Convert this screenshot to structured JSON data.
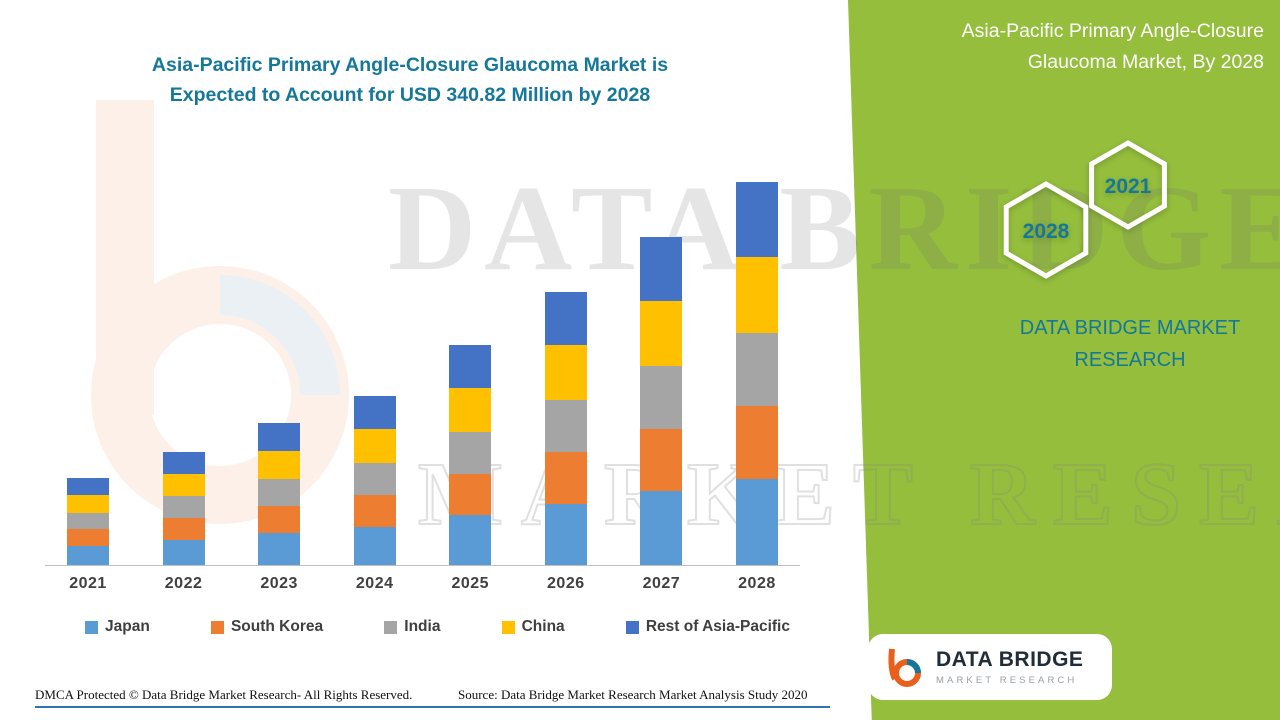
{
  "colors": {
    "teal": "#15789B",
    "green": "#94BE3C",
    "footer_line": "#2E74B5"
  },
  "header": {
    "main_title_line1": "Asia-Pacific Primary Angle-Closure Glaucoma Market is",
    "main_title_line2": "Expected to Account for USD 340.82 Million by 2028",
    "panel_title_line1": "Asia-Pacific Primary Angle-Closure",
    "panel_title_line2": "Glaucoma Market, By 2028"
  },
  "side_panel": {
    "hexagon_top_label": "2021",
    "hexagon_bottom_label": "2028",
    "brand_line1": "DATA BRIDGE MARKET",
    "brand_line2": "RESEARCH"
  },
  "watermark": {
    "line1": "DATA BRIDGE",
    "line2": "MARKET RESEARCH"
  },
  "logo_card": {
    "brand": "DATA BRIDGE",
    "sub": "MARKET RESEARCH"
  },
  "footer": {
    "left": "DMCA Protected © Data Bridge Market Research- All Rights Reserved.",
    "source": "Source: Data Bridge Market Research Market Analysis Study 2020"
  },
  "chart_data": {
    "type": "bar",
    "stacked": true,
    "unit": "USD Million",
    "title": "Asia-Pacific Primary Angle-Closure Glaucoma Market is Expected to Account for USD 340.82 Million by 2028",
    "categories": [
      "2021",
      "2022",
      "2023",
      "2024",
      "2025",
      "2026",
      "2027",
      "2028"
    ],
    "series": [
      {
        "name": "Japan",
        "color": "#5B9BD5",
        "values": [
          17.3,
          22.7,
          28.4,
          33.8,
          44.1,
          54.7,
          65.7,
          76.7
        ]
      },
      {
        "name": "South Korea",
        "color": "#ED7D31",
        "values": [
          14.6,
          19.2,
          23.9,
          28.5,
          37.2,
          46.2,
          55.5,
          64.8
        ]
      },
      {
        "name": "India",
        "color": "#A5A5A5",
        "values": [
          14.6,
          19.2,
          23.9,
          28.5,
          37.2,
          46.2,
          55.5,
          64.8
        ]
      },
      {
        "name": "China",
        "color": "#FFC000",
        "values": [
          15.4,
          20.2,
          25.2,
          30.0,
          39.2,
          48.6,
          58.4,
          68.2
        ]
      },
      {
        "name": "Rest of Asia-Pacific",
        "color": "#4472C4",
        "values": [
          15.1,
          19.7,
          24.6,
          29.2,
          38.3,
          47.3,
          56.9,
          66.3
        ]
      }
    ],
    "totals_estimated": [
      77.0,
      101.0,
      126.0,
      150.0,
      196.0,
      243.0,
      292.0,
      340.82
    ],
    "highlight_value_2028": 340.82,
    "xlabel": "",
    "ylabel": "",
    "ylim": [
      0,
      360
    ],
    "grid": false,
    "y_axis_visible": false,
    "legend_position": "bottom"
  }
}
